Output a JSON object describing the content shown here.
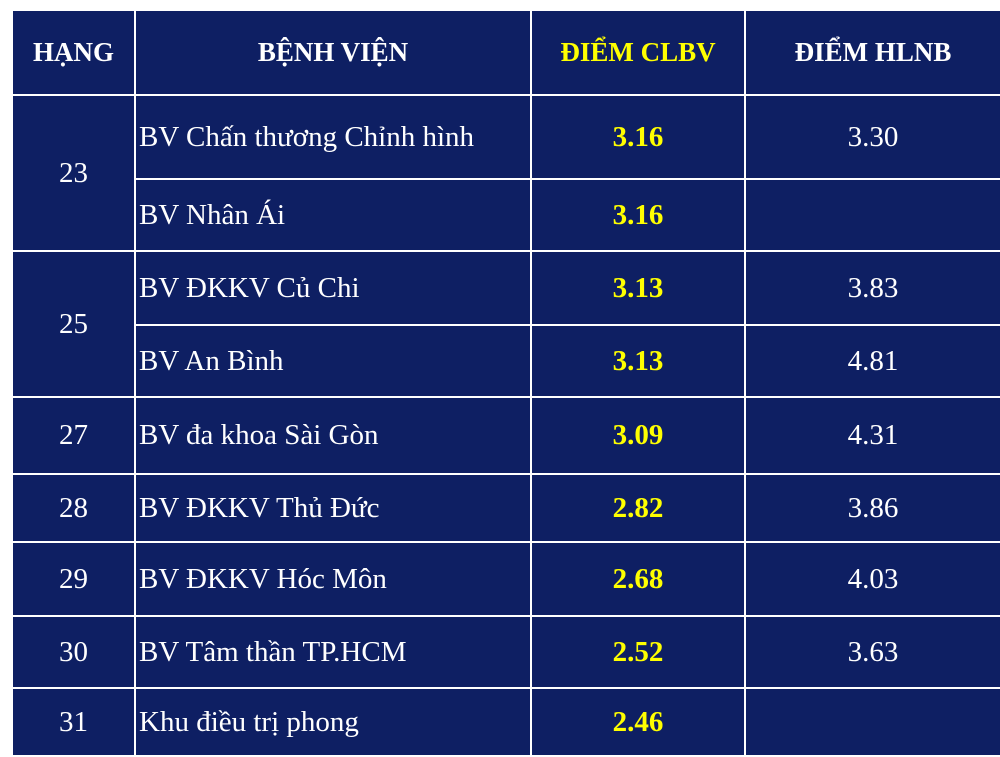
{
  "headers": {
    "rank": "HẠNG",
    "hospital": "BỆNH VIỆN",
    "clbv": "ĐIỂM CLBV",
    "hlnb": "ĐIỂM HLNB"
  },
  "rows": [
    {
      "rank": "23",
      "hospital": "BV Chấn thương Chỉnh hình",
      "clbv": "3.16",
      "hlnb": "3.30"
    },
    {
      "rank": "",
      "hospital": "BV Nhân Ái",
      "clbv": "3.16",
      "hlnb": ""
    },
    {
      "rank": "25",
      "hospital": "BV ĐKKV Củ Chi",
      "clbv": "3.13",
      "hlnb": "3.83"
    },
    {
      "rank": "",
      "hospital": "BV An Bình",
      "clbv": "3.13",
      "hlnb": "4.81"
    },
    {
      "rank": "27",
      "hospital": "BV đa khoa Sài Gòn",
      "clbv": "3.09",
      "hlnb": "4.31"
    },
    {
      "rank": "28",
      "hospital": "BV ĐKKV Thủ Đức",
      "clbv": "2.82",
      "hlnb": "3.86"
    },
    {
      "rank": "29",
      "hospital": "BV ĐKKV Hóc Môn",
      "clbv": "2.68",
      "hlnb": "4.03"
    },
    {
      "rank": "30",
      "hospital": "BV Tâm thần TP.HCM",
      "clbv": "2.52",
      "hlnb": "3.63"
    },
    {
      "rank": "31",
      "hospital": "Khu điều trị phong",
      "clbv": "2.46",
      "hlnb": ""
    }
  ],
  "colors": {
    "background": "#0e1f63",
    "highlight": "#ffff00",
    "text": "#ffffff"
  }
}
